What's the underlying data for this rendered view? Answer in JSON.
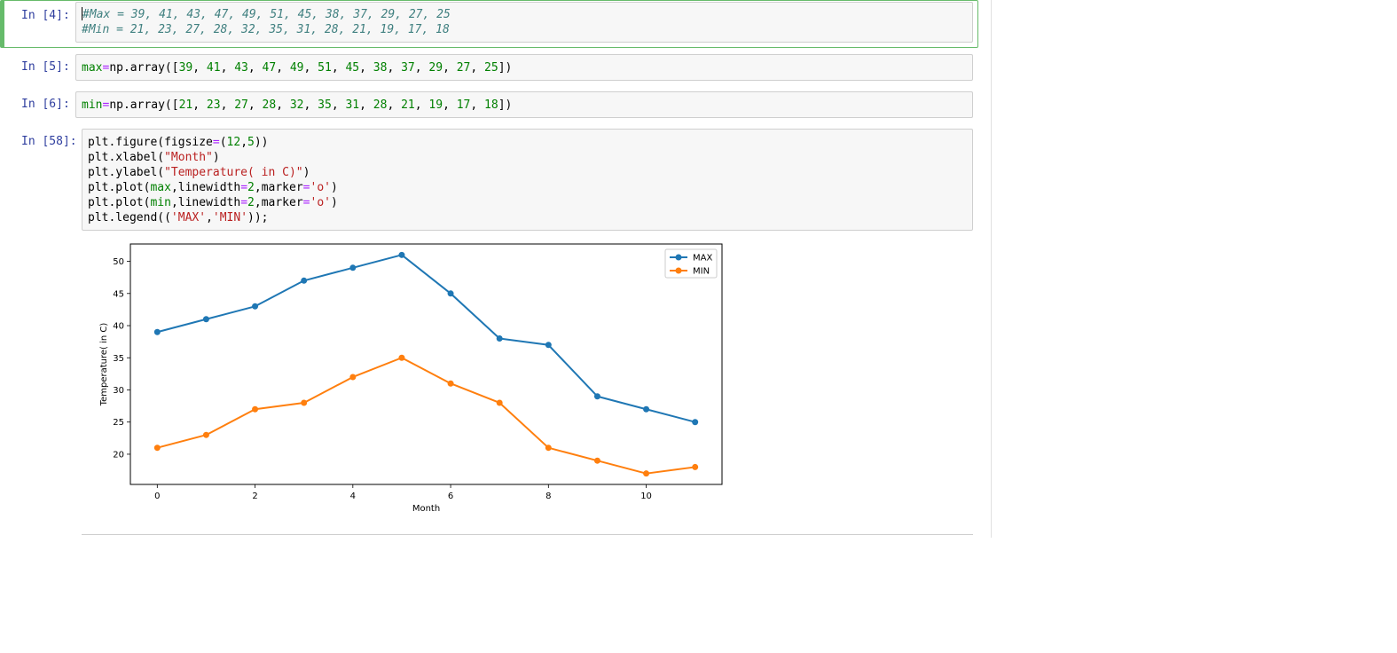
{
  "cells": [
    {
      "prompt": "In [4]:",
      "lines": [
        "#Max = 39, 41, 43, 47, 49, 51, 45, 38, 37, 29, 27, 25",
        "#Min = 21, 23, 27, 28, 32, 35, 31, 28, 21, 19, 17, 18"
      ]
    },
    {
      "prompt": "In [5]:",
      "var": "max",
      "op": "=",
      "pre": "np.array([",
      "numbers": [
        "39",
        "41",
        "43",
        "47",
        "49",
        "51",
        "45",
        "38",
        "37",
        "29",
        "27",
        "25"
      ],
      "post": "])"
    },
    {
      "prompt": "In [6]:",
      "var": "min",
      "op": "=",
      "pre": "np.array([",
      "numbers": [
        "21",
        "23",
        "27",
        "28",
        "32",
        "35",
        "31",
        "28",
        "21",
        "19",
        "17",
        "18"
      ],
      "post": "])"
    },
    {
      "prompt": "In [58]:",
      "code": {
        "l1_a": "plt.figure(figsize",
        "l1_op": "=",
        "l1_b": "(",
        "l1_n1": "12",
        "l1_c": ",",
        "l1_n2": "5",
        "l1_d": "))",
        "l2_a": "plt.xlabel(",
        "l2_s": "\"Month\"",
        "l2_b": ")",
        "l3_a": "plt.ylabel(",
        "l3_s": "\"Temperature( in C)\"",
        "l3_b": ")",
        "l4_a": "plt.plot(",
        "l4_v": "max",
        "l4_b": ",linewidth",
        "l4_op": "=",
        "l4_n": "2",
        "l4_c": ",marker",
        "l4_op2": "=",
        "l4_s": "'o'",
        "l4_d": ")",
        "l5_a": "plt.plot(",
        "l5_v": "min",
        "l5_b": ",linewidth",
        "l5_op": "=",
        "l5_n": "2",
        "l5_c": ",marker",
        "l5_op2": "=",
        "l5_s": "'o'",
        "l5_d": ")",
        "l6_a": "plt.legend((",
        "l6_s1": "'MAX'",
        "l6_b": ",",
        "l6_s2": "'MIN'",
        "l6_c": "));"
      }
    }
  ],
  "chart_data": {
    "type": "line",
    "x": [
      0,
      1,
      2,
      3,
      4,
      5,
      6,
      7,
      8,
      9,
      10,
      11
    ],
    "series": [
      {
        "name": "MAX",
        "color": "#1f77b4",
        "values": [
          39,
          41,
          43,
          47,
          49,
          51,
          45,
          38,
          37,
          29,
          27,
          25
        ]
      },
      {
        "name": "MIN",
        "color": "#ff7f0e",
        "values": [
          21,
          23,
          27,
          28,
          32,
          35,
          31,
          28,
          21,
          19,
          17,
          18
        ]
      }
    ],
    "xlabel": "Month",
    "ylabel": "Temperature( in C)",
    "xticks": [
      "0",
      "2",
      "4",
      "6",
      "8",
      "10"
    ],
    "yticks": [
      "20",
      "25",
      "30",
      "35",
      "40",
      "45",
      "50"
    ],
    "xlim": [
      -0.55,
      11.55
    ],
    "ylim": [
      15.3,
      52.7
    ],
    "grid": false,
    "legend": "top-right",
    "marker": "o"
  }
}
